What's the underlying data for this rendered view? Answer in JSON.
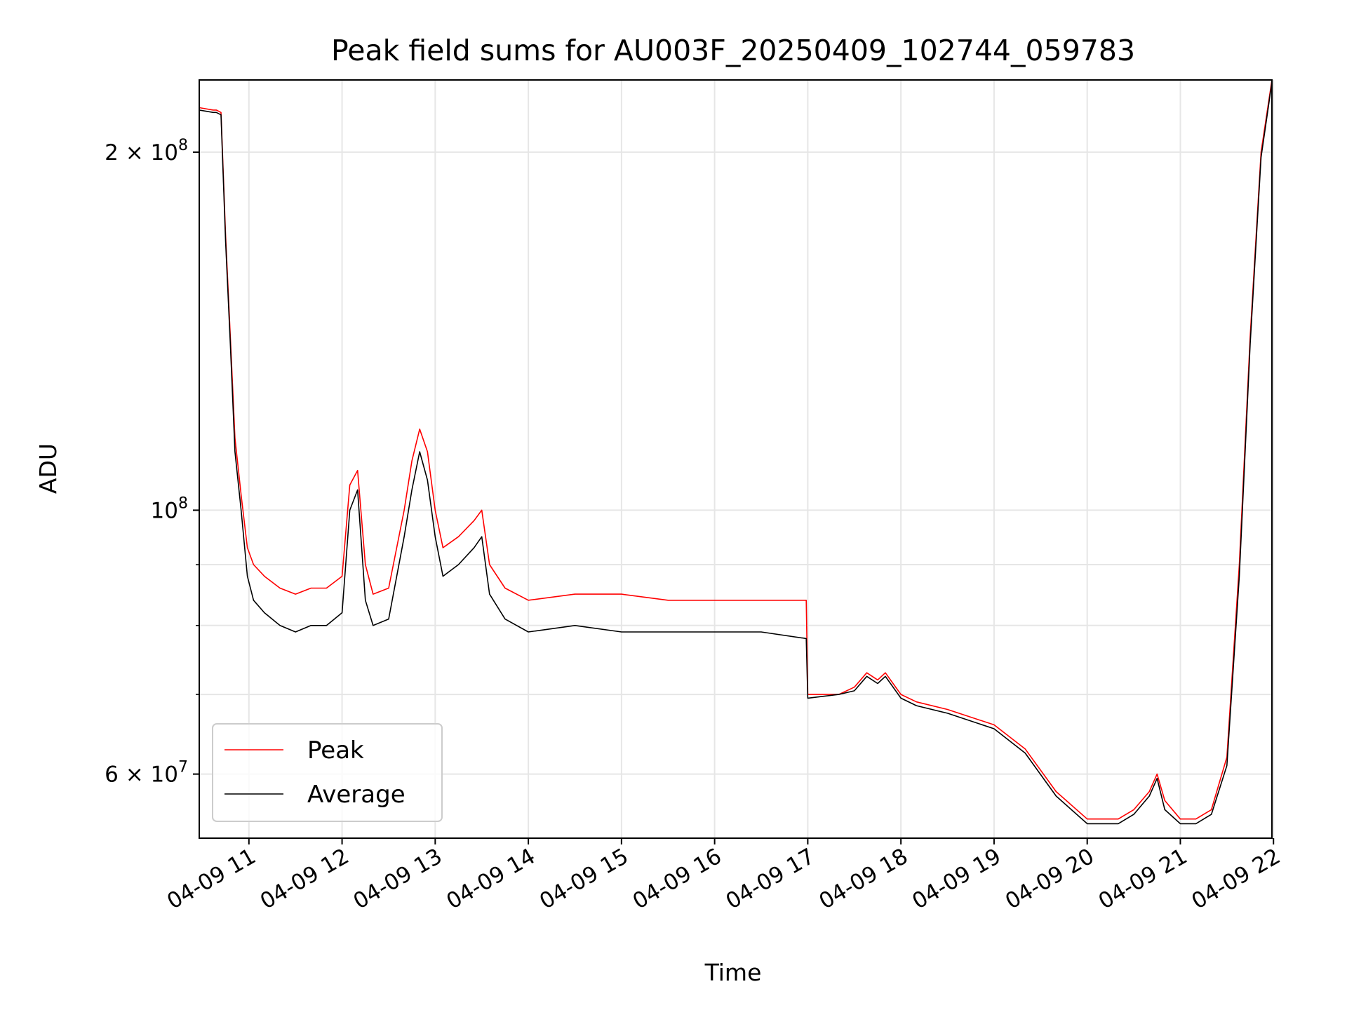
{
  "chart_data": {
    "type": "line",
    "title": "Peak field sums for AU003F_20250409_102744_059783",
    "xlabel": "Time",
    "ylabel": "ADU",
    "y_scale": "log",
    "ylim": [
      53000000,
      230000000
    ],
    "xlim": [
      "2025-04-09 10:28",
      "2025-04-09 21:59"
    ],
    "grid": true,
    "legend_position": "lower left",
    "x_ticks": [
      {
        "value": "2025-04-09 11:00",
        "label": "04-09 11"
      },
      {
        "value": "2025-04-09 12:00",
        "label": "04-09 12"
      },
      {
        "value": "2025-04-09 13:00",
        "label": "04-09 13"
      },
      {
        "value": "2025-04-09 14:00",
        "label": "04-09 14"
      },
      {
        "value": "2025-04-09 15:00",
        "label": "04-09 15"
      },
      {
        "value": "2025-04-09 16:00",
        "label": "04-09 16"
      },
      {
        "value": "2025-04-09 17:00",
        "label": "04-09 17"
      },
      {
        "value": "2025-04-09 18:00",
        "label": "04-09 18"
      },
      {
        "value": "2025-04-09 19:00",
        "label": "04-09 19"
      },
      {
        "value": "2025-04-09 20:00",
        "label": "04-09 20"
      },
      {
        "value": "2025-04-09 21:00",
        "label": "04-09 21"
      },
      {
        "value": "2025-04-09 22:00",
        "label": "04-09 22"
      }
    ],
    "y_major_ticks": [
      {
        "value": 60000000,
        "base": "6 × 10",
        "exp": "7"
      },
      {
        "value": 100000000,
        "base": "10",
        "exp": "8"
      },
      {
        "value": 200000000,
        "base": "2 × 10",
        "exp": "8"
      }
    ],
    "y_minor_ticks": [
      70000000,
      80000000,
      90000000
    ],
    "series": [
      {
        "name": "Peak",
        "color": "#ff0000",
        "x": [
          "2025-04-09 10:28",
          "2025-04-09 10:37",
          "2025-04-09 10:39",
          "2025-04-09 10:42",
          "2025-04-09 10:45",
          "2025-04-09 10:48",
          "2025-04-09 10:51",
          "2025-04-09 10:55",
          "2025-04-09 10:59",
          "2025-04-09 11:03",
          "2025-04-09 11:10",
          "2025-04-09 11:20",
          "2025-04-09 11:30",
          "2025-04-09 11:40",
          "2025-04-09 11:50",
          "2025-04-09 12:00",
          "2025-04-09 12:05",
          "2025-04-09 12:10",
          "2025-04-09 12:15",
          "2025-04-09 12:20",
          "2025-04-09 12:30",
          "2025-04-09 12:40",
          "2025-04-09 12:45",
          "2025-04-09 12:50",
          "2025-04-09 12:55",
          "2025-04-09 13:00",
          "2025-04-09 13:05",
          "2025-04-09 13:15",
          "2025-04-09 13:25",
          "2025-04-09 13:30",
          "2025-04-09 13:35",
          "2025-04-09 13:45",
          "2025-04-09 14:00",
          "2025-04-09 14:30",
          "2025-04-09 15:00",
          "2025-04-09 15:30",
          "2025-04-09 16:00",
          "2025-04-09 16:30",
          "2025-04-09 16:59",
          "2025-04-09 17:00",
          "2025-04-09 17:20",
          "2025-04-09 17:30",
          "2025-04-09 17:38",
          "2025-04-09 17:45",
          "2025-04-09 17:50",
          "2025-04-09 18:00",
          "2025-04-09 18:10",
          "2025-04-09 18:30",
          "2025-04-09 19:00",
          "2025-04-09 19:20",
          "2025-04-09 19:40",
          "2025-04-09 20:00",
          "2025-04-09 20:10",
          "2025-04-09 20:20",
          "2025-04-09 20:30",
          "2025-04-09 20:40",
          "2025-04-09 20:45",
          "2025-04-09 20:50",
          "2025-04-09 21:00",
          "2025-04-09 21:10",
          "2025-04-09 21:20",
          "2025-04-09 21:30",
          "2025-04-09 21:38",
          "2025-04-09 21:45",
          "2025-04-09 21:52",
          "2025-04-09 21:59"
        ],
        "values": [
          218000000,
          217000000,
          217000000,
          216000000,
          170000000,
          140000000,
          115000000,
          103000000,
          93000000,
          90000000,
          88000000,
          86000000,
          85000000,
          86000000,
          86000000,
          88000000,
          105000000,
          108000000,
          90000000,
          85000000,
          86000000,
          100000000,
          110000000,
          117000000,
          112000000,
          100000000,
          93000000,
          95000000,
          98000000,
          100000000,
          90000000,
          86000000,
          84000000,
          85000000,
          85000000,
          84000000,
          84000000,
          84000000,
          84000000,
          70000000,
          70000000,
          71000000,
          73000000,
          72000000,
          73000000,
          70000000,
          69000000,
          68000000,
          66000000,
          63000000,
          58000000,
          55000000,
          55000000,
          55000000,
          56000000,
          58000000,
          60000000,
          57000000,
          55000000,
          55000000,
          56000000,
          62000000,
          90000000,
          140000000,
          200000000,
          230000000
        ]
      },
      {
        "name": "Average",
        "color": "#000000",
        "x": [
          "2025-04-09 10:28",
          "2025-04-09 10:37",
          "2025-04-09 10:39",
          "2025-04-09 10:42",
          "2025-04-09 10:45",
          "2025-04-09 10:48",
          "2025-04-09 10:51",
          "2025-04-09 10:55",
          "2025-04-09 10:59",
          "2025-04-09 11:03",
          "2025-04-09 11:10",
          "2025-04-09 11:20",
          "2025-04-09 11:30",
          "2025-04-09 11:40",
          "2025-04-09 11:50",
          "2025-04-09 12:00",
          "2025-04-09 12:05",
          "2025-04-09 12:10",
          "2025-04-09 12:15",
          "2025-04-09 12:20",
          "2025-04-09 12:30",
          "2025-04-09 12:40",
          "2025-04-09 12:45",
          "2025-04-09 12:50",
          "2025-04-09 12:55",
          "2025-04-09 13:00",
          "2025-04-09 13:05",
          "2025-04-09 13:15",
          "2025-04-09 13:25",
          "2025-04-09 13:30",
          "2025-04-09 13:35",
          "2025-04-09 13:45",
          "2025-04-09 14:00",
          "2025-04-09 14:30",
          "2025-04-09 15:00",
          "2025-04-09 15:30",
          "2025-04-09 16:00",
          "2025-04-09 16:30",
          "2025-04-09 16:59",
          "2025-04-09 17:00",
          "2025-04-09 17:20",
          "2025-04-09 17:30",
          "2025-04-09 17:38",
          "2025-04-09 17:45",
          "2025-04-09 17:50",
          "2025-04-09 18:00",
          "2025-04-09 18:10",
          "2025-04-09 18:30",
          "2025-04-09 19:00",
          "2025-04-09 19:20",
          "2025-04-09 19:40",
          "2025-04-09 20:00",
          "2025-04-09 20:10",
          "2025-04-09 20:20",
          "2025-04-09 20:30",
          "2025-04-09 20:40",
          "2025-04-09 20:45",
          "2025-04-09 20:50",
          "2025-04-09 21:00",
          "2025-04-09 21:10",
          "2025-04-09 21:20",
          "2025-04-09 21:30",
          "2025-04-09 21:38",
          "2025-04-09 21:45",
          "2025-04-09 21:52",
          "2025-04-09 21:59"
        ],
        "values": [
          217000000,
          216000000,
          216000000,
          215000000,
          168000000,
          138000000,
          112000000,
          100000000,
          88000000,
          84000000,
          82000000,
          80000000,
          79000000,
          80000000,
          80000000,
          82000000,
          100000000,
          104000000,
          84000000,
          80000000,
          81000000,
          95000000,
          104000000,
          112000000,
          106000000,
          95000000,
          88000000,
          90000000,
          93000000,
          95000000,
          85000000,
          81000000,
          79000000,
          80000000,
          79000000,
          79000000,
          79000000,
          79000000,
          78000000,
          69500000,
          70000000,
          70500000,
          72500000,
          71500000,
          72500000,
          69500000,
          68500000,
          67500000,
          65500000,
          62500000,
          57500000,
          54500000,
          54500000,
          54500000,
          55500000,
          57500000,
          59500000,
          56000000,
          54500000,
          54500000,
          55500000,
          61000000,
          88000000,
          138000000,
          198000000,
          229000000
        ]
      }
    ]
  }
}
